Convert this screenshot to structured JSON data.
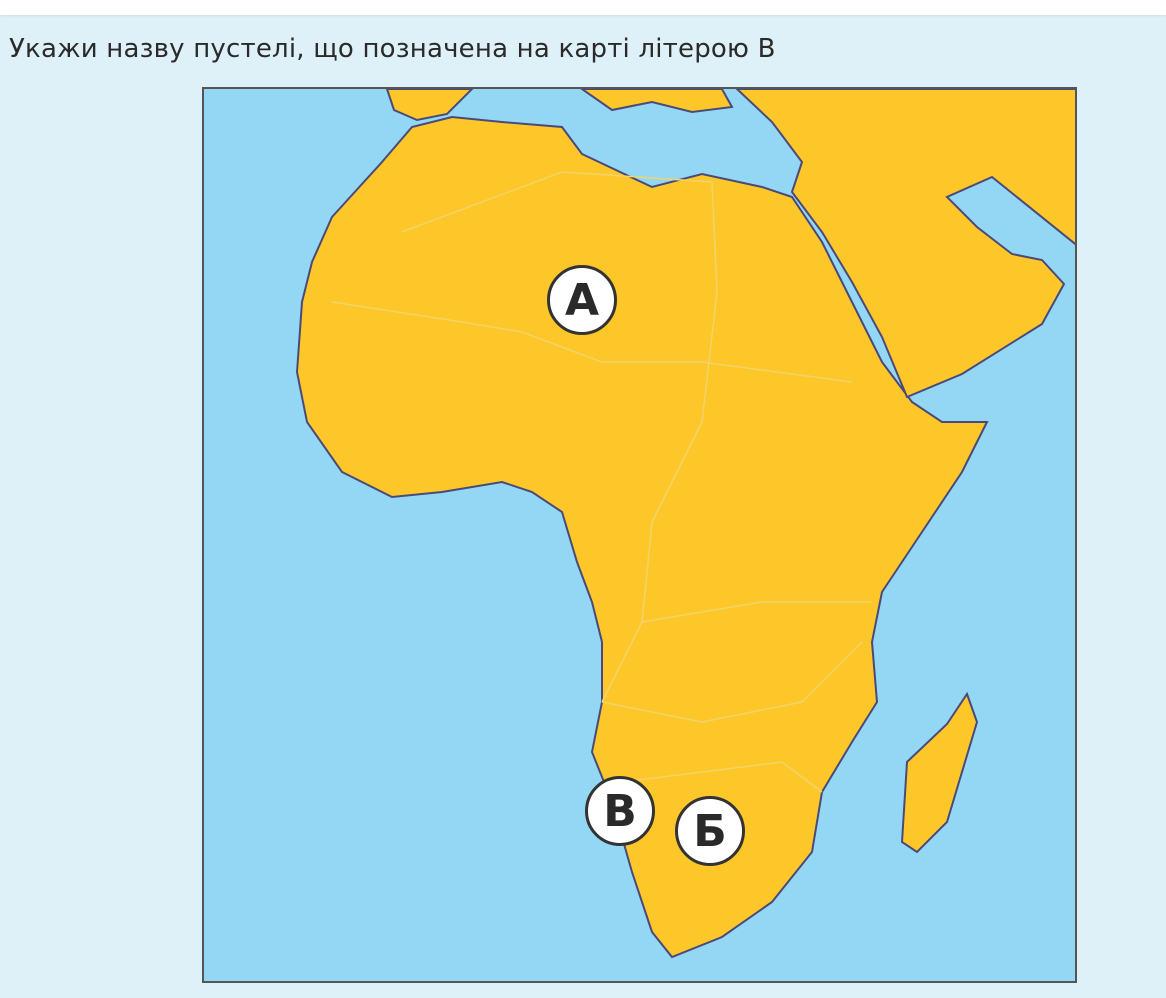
{
  "question": {
    "text": "Укажи назву пустелі, що позначена на карті літерою В"
  },
  "map": {
    "colors": {
      "water": "#94d7f4",
      "land": "#fdc72a",
      "coast": "#4a4a7a",
      "borders": "#f2d46a"
    },
    "markers": [
      {
        "label": "А"
      },
      {
        "label": "Б"
      },
      {
        "label": "В"
      }
    ]
  }
}
